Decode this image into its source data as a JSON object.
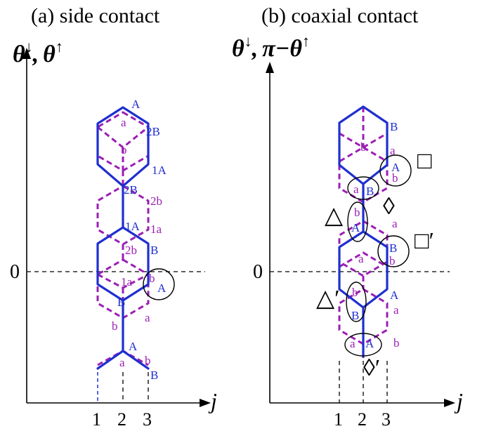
{
  "panel_a": {
    "title": "(a) side contact",
    "y_axis": {
      "theta": "θ",
      "sep": ",",
      "theta2": "θ",
      "down": "↓",
      "up": "↑"
    },
    "zero": "0",
    "x_label": "j",
    "ticks": [
      "1",
      "2",
      "3"
    ],
    "labels": {
      "A_top": "A",
      "a_top": "a",
      "B2_top": "2B",
      "b_top": "b",
      "A1_top": "1A",
      "B2_mid": "2B",
      "b2_mid": "2b",
      "A1_mid": "1A",
      "a1_mid": "1a",
      "b2_low": "2b",
      "B_low": "B",
      "a1_low": "1a",
      "b_circ": "b",
      "A_circ": "A",
      "B_bot": "B",
      "b_bot": "b",
      "a_bot": "a",
      "A_end": "A",
      "a_end": "a",
      "b_end": "b",
      "B_end": "B"
    }
  },
  "panel_b": {
    "title": "(b)  coaxial contact",
    "y_axis": {
      "theta": "θ",
      "sep": ",",
      "pi": "π",
      "minus": "−",
      "theta2": "θ",
      "down": "↓",
      "up": "↑"
    },
    "zero": "0",
    "x_label": "j",
    "ticks": [
      "1",
      "2",
      "3"
    ],
    "labels": {
      "B_top": "B",
      "b_top": "b",
      "a_top": "a",
      "A_c1": "A",
      "b_c1": "b",
      "a_c2": "a",
      "B_c2": "B",
      "b_c3": "b",
      "A_c3": "A",
      "a_mid": "a",
      "B_c4": "B",
      "b_c4": "b",
      "a_hex": "a",
      "b_c5": "b",
      "B_c5": "B",
      "A_low": "A",
      "a_low": "a",
      "a_c6": "a",
      "A_c6": "A",
      "b_end": "b"
    },
    "symbols": {
      "square": "□",
      "square_prime": "□′",
      "diamond": "◊",
      "diamond_prime": "◊′",
      "triangle": "△",
      "triangle_prime": "△′"
    }
  }
}
